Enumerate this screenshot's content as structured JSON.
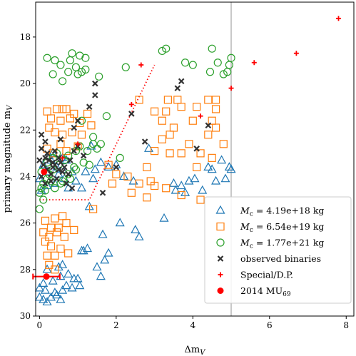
{
  "chart_data": {
    "type": "scatter",
    "xlabel": "Δm_V",
    "ylabel": "primary magnitude m_V",
    "xlim": [
      -0.1,
      8.2
    ],
    "ylim": [
      30.0,
      16.5
    ],
    "y_inverted": true,
    "x_ticks": [
      0,
      2,
      4,
      6,
      8
    ],
    "y_ticks": [
      18,
      20,
      22,
      24,
      26,
      28,
      30
    ],
    "x_tick_labels": [
      "0",
      "2",
      "4",
      "6",
      "8"
    ],
    "y_tick_labels": [
      "18",
      "20",
      "22",
      "24",
      "26",
      "28",
      "30"
    ],
    "grid": false,
    "legend_position": "lower right",
    "vertical_line": {
      "x": 5.0,
      "color": "#c8c8c8"
    },
    "reference_curve": {
      "style": "dotted",
      "color": "#ff0000",
      "points": [
        [
          0.0,
          25.0
        ],
        [
          1.3,
          25.0
        ],
        [
          3.0,
          19.2
        ]
      ]
    },
    "legend": [
      {
        "series": "mc1",
        "label": "M_c = 4.19e+18 kg",
        "marker": "triangle"
      },
      {
        "series": "mc2",
        "label": "M_c = 6.54e+19 kg",
        "marker": "square"
      },
      {
        "series": "mc3",
        "label": "M_c = 1.77e+21 kg",
        "marker": "circle"
      },
      {
        "series": "observed",
        "label": "observed binaries",
        "marker": "x"
      },
      {
        "series": "special",
        "label": "Special/D.P.",
        "marker": "plus"
      },
      {
        "series": "mu69",
        "label": "2014 MU69",
        "marker": "dot"
      }
    ],
    "series": [
      {
        "id": "mc1",
        "name": "M_c = 4.19e+18 kg",
        "marker": "triangle",
        "color": "#1f77b4",
        "points": [
          [
            0.0,
            24.1
          ],
          [
            0.2,
            23.8
          ],
          [
            0.3,
            23.3
          ],
          [
            0.35,
            23.0
          ],
          [
            0.45,
            23.6
          ],
          [
            0.5,
            23.9
          ],
          [
            0.6,
            23.2
          ],
          [
            0.2,
            24.4
          ],
          [
            0.1,
            23.5
          ],
          [
            0.05,
            24.6
          ],
          [
            0.6,
            23.7
          ],
          [
            0.65,
            24.1
          ],
          [
            0.7,
            23.3
          ],
          [
            0.85,
            23.8
          ],
          [
            0.95,
            24.2
          ],
          [
            1.1,
            24.5
          ],
          [
            1.2,
            23.8
          ],
          [
            0.25,
            23.1
          ],
          [
            0.4,
            24.3
          ],
          [
            0.75,
            24.5
          ],
          [
            1.4,
            24.1
          ],
          [
            1.45,
            23.7
          ],
          [
            1.6,
            23.4
          ],
          [
            1.8,
            23.6
          ],
          [
            2.0,
            23.5
          ],
          [
            2.2,
            24.0
          ],
          [
            2.45,
            24.2
          ],
          [
            2.85,
            22.8
          ],
          [
            1.35,
            22.7
          ],
          [
            4.5,
            23.7
          ],
          [
            4.75,
            23.3
          ],
          [
            4.85,
            24.1
          ],
          [
            5.0,
            23.7
          ],
          [
            4.95,
            23.6
          ],
          [
            3.55,
            24.6
          ],
          [
            3.7,
            24.4
          ],
          [
            3.8,
            24.7
          ],
          [
            3.5,
            24.3
          ],
          [
            4.25,
            24.6
          ],
          [
            4.05,
            24.1
          ],
          [
            3.9,
            24.2
          ],
          [
            4.4,
            23.6
          ],
          [
            4.6,
            24.2
          ],
          [
            1.3,
            25.3
          ],
          [
            2.1,
            26.0
          ],
          [
            2.5,
            26.3
          ],
          [
            2.6,
            26.6
          ],
          [
            3.25,
            25.8
          ],
          [
            1.25,
            27.1
          ],
          [
            1.65,
            26.5
          ],
          [
            1.1,
            27.2
          ],
          [
            1.8,
            27.3
          ],
          [
            1.7,
            27.6
          ],
          [
            1.6,
            28.3
          ],
          [
            1.5,
            27.9
          ],
          [
            1.15,
            27.2
          ],
          [
            0.2,
            28.0
          ],
          [
            0.5,
            27.9
          ],
          [
            0.6,
            27.8
          ],
          [
            0.75,
            28.2
          ],
          [
            0.9,
            28.4
          ],
          [
            0.1,
            28.6
          ],
          [
            0.35,
            28.5
          ],
          [
            0.55,
            28.3
          ],
          [
            0.7,
            28.7
          ],
          [
            0.85,
            28.8
          ],
          [
            1.0,
            28.4
          ],
          [
            1.05,
            28.7
          ],
          [
            0.0,
            28.8
          ],
          [
            0.15,
            28.9
          ],
          [
            0.3,
            29.2
          ],
          [
            0.45,
            29.1
          ],
          [
            0.6,
            28.9
          ],
          [
            0.0,
            29.2
          ],
          [
            0.1,
            29.3
          ],
          [
            0.2,
            29.4
          ],
          [
            0.4,
            29.0
          ],
          [
            0.55,
            29.3
          ]
        ]
      },
      {
        "id": "mc2",
        "name": "M_c = 6.54e+19 kg",
        "marker": "square",
        "color": "#ff7f0e",
        "points": [
          [
            0.2,
            21.2
          ],
          [
            0.45,
            21.1
          ],
          [
            0.6,
            21.1
          ],
          [
            0.7,
            21.1
          ],
          [
            0.9,
            21.3
          ],
          [
            1.25,
            21.3
          ],
          [
            0.3,
            21.5
          ],
          [
            0.55,
            21.6
          ],
          [
            0.8,
            21.5
          ],
          [
            1.05,
            21.7
          ],
          [
            1.35,
            21.8
          ],
          [
            0.25,
            21.9
          ],
          [
            0.4,
            22.1
          ],
          [
            0.6,
            22.2
          ],
          [
            0.85,
            22.1
          ],
          [
            1.1,
            22.2
          ],
          [
            0.55,
            22.6
          ],
          [
            0.2,
            22.8
          ],
          [
            0.7,
            22.9
          ],
          [
            1.0,
            22.7
          ],
          [
            0.35,
            23.0
          ],
          [
            1.8,
            23.5
          ],
          [
            2.0,
            23.9
          ],
          [
            2.3,
            24.0
          ],
          [
            2.6,
            24.3
          ],
          [
            2.9,
            24.2
          ],
          [
            1.9,
            24.3
          ],
          [
            2.4,
            24.7
          ],
          [
            2.8,
            24.9
          ],
          [
            1.4,
            25.4
          ],
          [
            0.6,
            25.7
          ],
          [
            0.4,
            25.8
          ],
          [
            0.15,
            25.9
          ],
          [
            0.3,
            26.2
          ],
          [
            0.5,
            26.2
          ],
          [
            0.7,
            26.0
          ],
          [
            0.9,
            26.3
          ],
          [
            0.1,
            26.4
          ],
          [
            0.25,
            26.6
          ],
          [
            0.45,
            26.4
          ],
          [
            0.65,
            26.6
          ],
          [
            0.15,
            26.8
          ],
          [
            0.3,
            27.0
          ],
          [
            0.55,
            27.1
          ],
          [
            0.2,
            27.4
          ],
          [
            0.4,
            27.4
          ],
          [
            0.75,
            27.3
          ],
          [
            0.25,
            27.8
          ],
          [
            0.4,
            28.0
          ],
          [
            3.35,
            20.7
          ],
          [
            3.6,
            20.7
          ],
          [
            4.4,
            20.7
          ],
          [
            4.6,
            20.7
          ],
          [
            2.6,
            20.7
          ],
          [
            3.7,
            21.0
          ],
          [
            4.1,
            21.0
          ],
          [
            4.6,
            21.1
          ],
          [
            3.3,
            21.2
          ],
          [
            3.0,
            21.2
          ],
          [
            3.2,
            21.6
          ],
          [
            4.0,
            21.6
          ],
          [
            4.5,
            21.6
          ],
          [
            3.5,
            21.9
          ],
          [
            4.6,
            21.9
          ],
          [
            3.4,
            22.2
          ],
          [
            4.4,
            22.2
          ],
          [
            3.2,
            22.4
          ],
          [
            3.9,
            22.6
          ],
          [
            4.8,
            22.6
          ],
          [
            3.0,
            22.9
          ],
          [
            3.4,
            23.0
          ],
          [
            3.7,
            23.0
          ],
          [
            4.2,
            23.0
          ],
          [
            4.5,
            23.2
          ],
          [
            4.1,
            23.6
          ],
          [
            2.8,
            23.6
          ],
          [
            3.0,
            24.4
          ],
          [
            3.3,
            24.5
          ],
          [
            3.7,
            24.8
          ],
          [
            4.2,
            25.0
          ]
        ]
      },
      {
        "id": "mc3",
        "name": "M_c = 1.77e+21 kg",
        "marker": "circle",
        "color": "#2ca02c",
        "points": [
          [
            0.2,
            18.9
          ],
          [
            0.4,
            19.0
          ],
          [
            0.55,
            19.2
          ],
          [
            0.8,
            19.0
          ],
          [
            0.95,
            19.3
          ],
          [
            1.2,
            19.4
          ],
          [
            0.85,
            18.7
          ],
          [
            1.05,
            18.8
          ],
          [
            1.2,
            18.9
          ],
          [
            0.35,
            19.6
          ],
          [
            0.75,
            19.5
          ],
          [
            1.0,
            19.6
          ],
          [
            1.55,
            19.7
          ],
          [
            1.1,
            19.5
          ],
          [
            0.6,
            19.9
          ],
          [
            2.25,
            19.3
          ],
          [
            3.2,
            18.6
          ],
          [
            3.3,
            18.5
          ],
          [
            3.8,
            19.1
          ],
          [
            4.0,
            19.2
          ],
          [
            4.5,
            18.5
          ],
          [
            4.65,
            19.1
          ],
          [
            4.8,
            19.6
          ],
          [
            4.45,
            19.5
          ],
          [
            5.0,
            18.9
          ],
          [
            4.95,
            19.2
          ],
          [
            4.9,
            19.5
          ],
          [
            1.75,
            21.4
          ],
          [
            1.1,
            21.6
          ],
          [
            1.4,
            22.3
          ],
          [
            1.4,
            22.6
          ],
          [
            1.25,
            22.9
          ],
          [
            1.05,
            22.7
          ],
          [
            0.95,
            22.9
          ],
          [
            0.75,
            23.1
          ],
          [
            0.65,
            23.3
          ],
          [
            0.5,
            23.5
          ],
          [
            0.35,
            23.7
          ],
          [
            0.25,
            23.9
          ],
          [
            0.2,
            24.1
          ],
          [
            0.1,
            24.3
          ],
          [
            0.05,
            24.5
          ],
          [
            0.0,
            24.7
          ],
          [
            0.15,
            24.6
          ],
          [
            0.4,
            24.5
          ],
          [
            0.55,
            24.3
          ],
          [
            0.8,
            24.1
          ],
          [
            0.95,
            23.7
          ],
          [
            0.75,
            23.9
          ],
          [
            1.15,
            23.4
          ],
          [
            0.1,
            25.0
          ],
          [
            0.0,
            25.4
          ],
          [
            0.3,
            24.2
          ],
          [
            0.6,
            24.2
          ],
          [
            1.3,
            23.5
          ],
          [
            1.5,
            22.8
          ],
          [
            1.6,
            22.6
          ],
          [
            2.1,
            23.2
          ],
          [
            0.9,
            23.6
          ],
          [
            0.05,
            23.8
          ],
          [
            0.2,
            23.4
          ],
          [
            0.35,
            23.2
          ],
          [
            0.45,
            23.0
          ]
        ]
      },
      {
        "id": "observed",
        "name": "observed binaries",
        "marker": "x",
        "color": "#333333",
        "points": [
          [
            0.05,
            22.2
          ],
          [
            0.15,
            22.5
          ],
          [
            0.05,
            22.8
          ],
          [
            0.2,
            23.0
          ],
          [
            0.0,
            23.3
          ],
          [
            0.1,
            23.5
          ],
          [
            0.2,
            23.7
          ],
          [
            0.3,
            23.9
          ],
          [
            0.4,
            23.5
          ],
          [
            0.5,
            23.7
          ],
          [
            0.55,
            23.4
          ],
          [
            0.45,
            24.1
          ],
          [
            0.6,
            23.8
          ],
          [
            0.7,
            24.3
          ],
          [
            0.3,
            24.2
          ],
          [
            0.15,
            24.3
          ],
          [
            0.05,
            24.0
          ],
          [
            0.65,
            23.6
          ],
          [
            0.75,
            23.9
          ],
          [
            0.85,
            24.5
          ],
          [
            0.25,
            23.3
          ],
          [
            0.35,
            23.6
          ],
          [
            0.8,
            23.3
          ],
          [
            0.9,
            22.9
          ],
          [
            1.0,
            22.7
          ],
          [
            0.15,
            23.2
          ],
          [
            0.4,
            22.9
          ],
          [
            0.5,
            23.2
          ],
          [
            0.55,
            22.4
          ],
          [
            0.9,
            21.9
          ],
          [
            1.0,
            21.6
          ],
          [
            1.15,
            23.1
          ],
          [
            0.35,
            23.4
          ],
          [
            1.3,
            21.0
          ],
          [
            1.45,
            20.5
          ],
          [
            1.45,
            20.0
          ],
          [
            1.65,
            24.7
          ],
          [
            2.4,
            21.3
          ],
          [
            2.0,
            23.6
          ],
          [
            2.75,
            22.5
          ],
          [
            3.6,
            20.2
          ],
          [
            3.7,
            19.9
          ],
          [
            4.1,
            22.8
          ],
          [
            4.4,
            21.8
          ]
        ]
      },
      {
        "id": "special",
        "name": "Special/D.P.",
        "marker": "plus",
        "color": "#ff0000",
        "points": [
          [
            7.8,
            17.2
          ],
          [
            6.7,
            18.7
          ],
          [
            5.6,
            19.1
          ],
          [
            5.0,
            20.2
          ],
          [
            2.65,
            19.2
          ],
          [
            2.4,
            20.9
          ],
          [
            1.0,
            22.6
          ],
          [
            0.6,
            23.2
          ],
          [
            4.2,
            21.4
          ]
        ]
      },
      {
        "id": "mu69",
        "name": "2014 MU69",
        "marker": "dot",
        "color": "#ff0000",
        "points": [
          [
            0.18,
            28.3
          ],
          [
            0.12,
            23.8
          ]
        ],
        "error_bar": {
          "x": 0.18,
          "y": 28.3,
          "xerr": 0.35
        }
      }
    ]
  }
}
